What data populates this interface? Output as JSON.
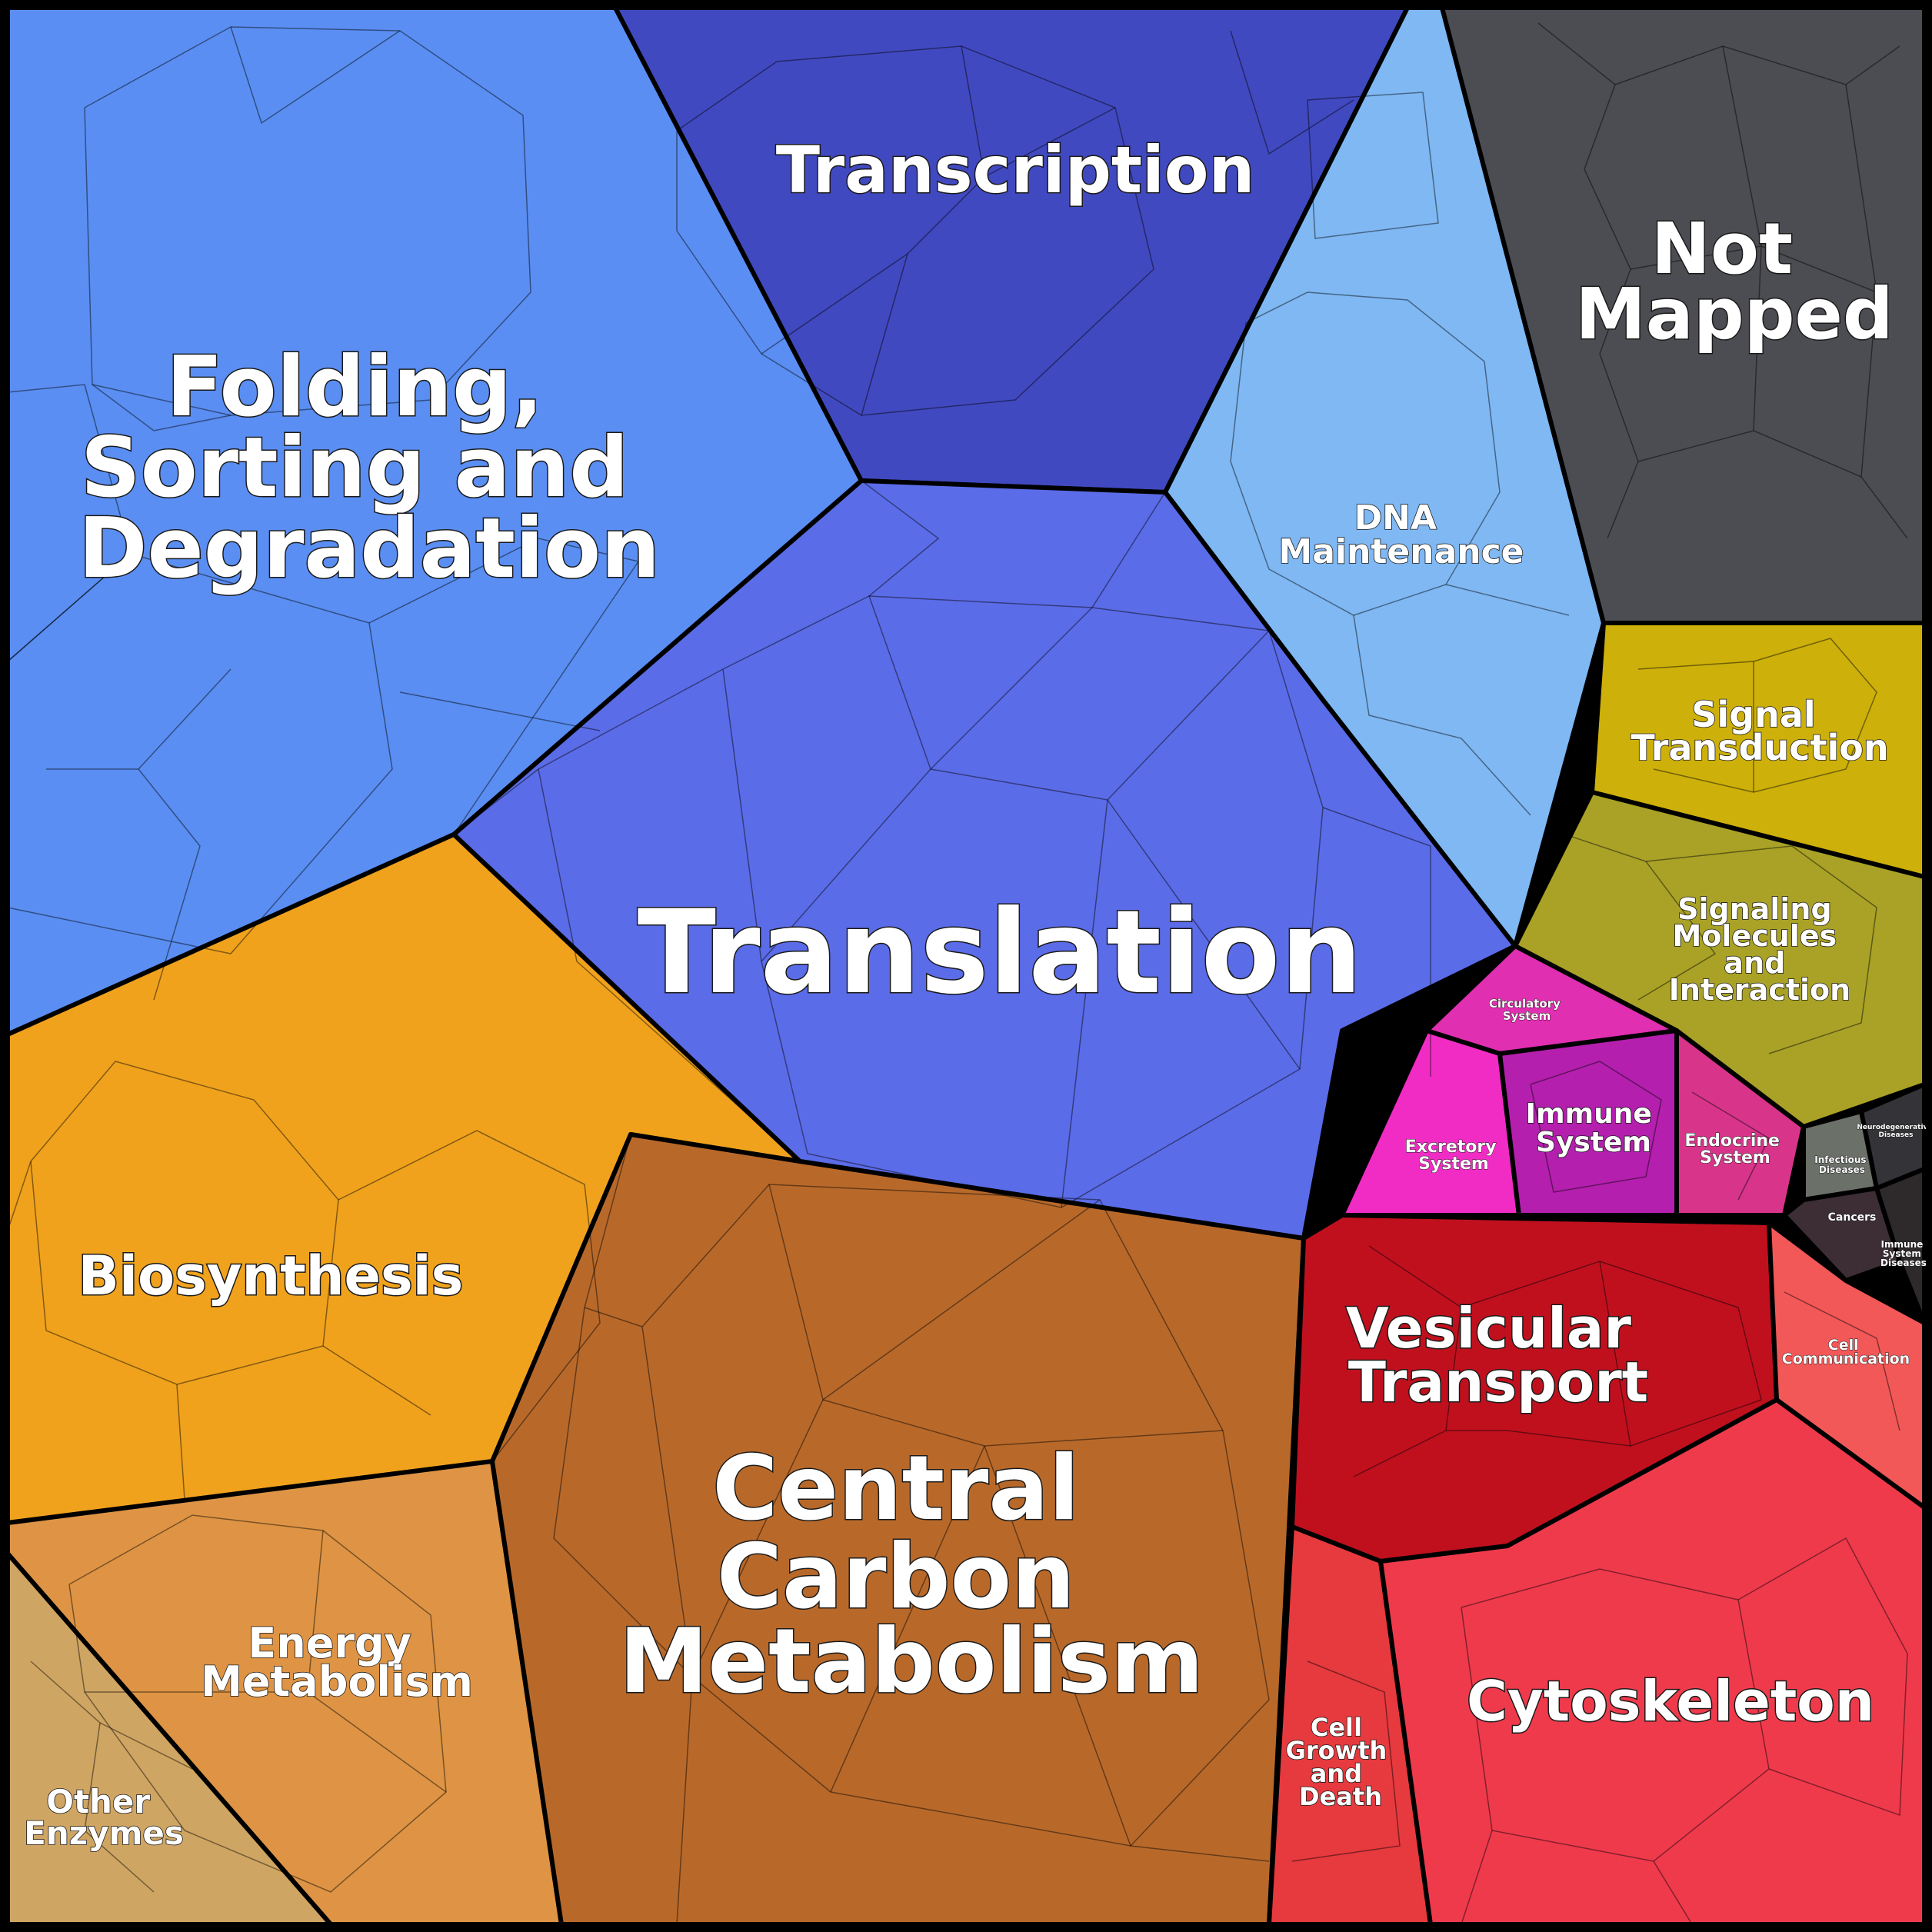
{
  "diagram": {
    "type": "voronoi-treemap",
    "regions": [
      {
        "id": "folding",
        "lines": [
          "Folding,",
          "Sorting and",
          "Degradation"
        ],
        "color": "#5a8ef2"
      },
      {
        "id": "transcription",
        "lines": [
          "Transcription"
        ],
        "color": "#4149c0"
      },
      {
        "id": "dna",
        "lines": [
          "DNA",
          "Maintenance"
        ],
        "color": "#7fb8f3"
      },
      {
        "id": "notmapped",
        "lines": [
          "Not",
          "Mapped"
        ],
        "color": "#4b4d52"
      },
      {
        "id": "translation",
        "lines": [
          "Translation"
        ],
        "color": "#5b6ce8"
      },
      {
        "id": "signaltrans",
        "lines": [
          "Signal",
          "Transduction"
        ],
        "color": "#cdb00a"
      },
      {
        "id": "signalmol",
        "lines": [
          "Signaling",
          "Molecules",
          "and",
          "Interaction"
        ],
        "color": "#a9a226"
      },
      {
        "id": "circulatory",
        "lines": [
          "Circulatory",
          "System"
        ],
        "color": "#e02fb0"
      },
      {
        "id": "excretory",
        "lines": [
          "Excretory",
          "System"
        ],
        "color": "#f12cc4"
      },
      {
        "id": "immune",
        "lines": [
          "Immune",
          "System"
        ],
        "color": "#b41fae"
      },
      {
        "id": "endocrine",
        "lines": [
          "Endocrine",
          "System"
        ],
        "color": "#d8358a"
      },
      {
        "id": "infectious",
        "lines": [
          "Infectious",
          "Diseases"
        ],
        "color": "#6b7068"
      },
      {
        "id": "neuro",
        "lines": [
          "Neurodegenerative",
          "Diseases"
        ],
        "color": "#333338"
      },
      {
        "id": "cancers",
        "lines": [
          "Cancers"
        ],
        "color": "#3d2e35"
      },
      {
        "id": "immunedis",
        "lines": [
          "Immune",
          "System",
          "Diseases"
        ],
        "color": "#2e2a2c"
      },
      {
        "id": "biosynthesis",
        "lines": [
          "Biosynthesis"
        ],
        "color": "#f0a21d"
      },
      {
        "id": "ccm",
        "lines": [
          "Central",
          "Carbon",
          "Metabolism"
        ],
        "color": "#b8692a"
      },
      {
        "id": "vesicular",
        "lines": [
          "Vesicular",
          "Transport"
        ],
        "color": "#c0101e"
      },
      {
        "id": "cellcomm",
        "lines": [
          "Cell",
          "Communication"
        ],
        "color": "#f25858"
      },
      {
        "id": "energy",
        "lines": [
          "Energy",
          "Metabolism"
        ],
        "color": "#de9444"
      },
      {
        "id": "other",
        "lines": [
          "Other",
          "Enzymes"
        ],
        "color": "#cfa563"
      },
      {
        "id": "cellgrowth",
        "lines": [
          "Cell",
          "Growth",
          "and",
          "Death"
        ],
        "color": "#e63a3e"
      },
      {
        "id": "cytoskeleton",
        "lines": [
          "Cytoskeleton"
        ],
        "color": "#ef3a4c"
      }
    ]
  }
}
